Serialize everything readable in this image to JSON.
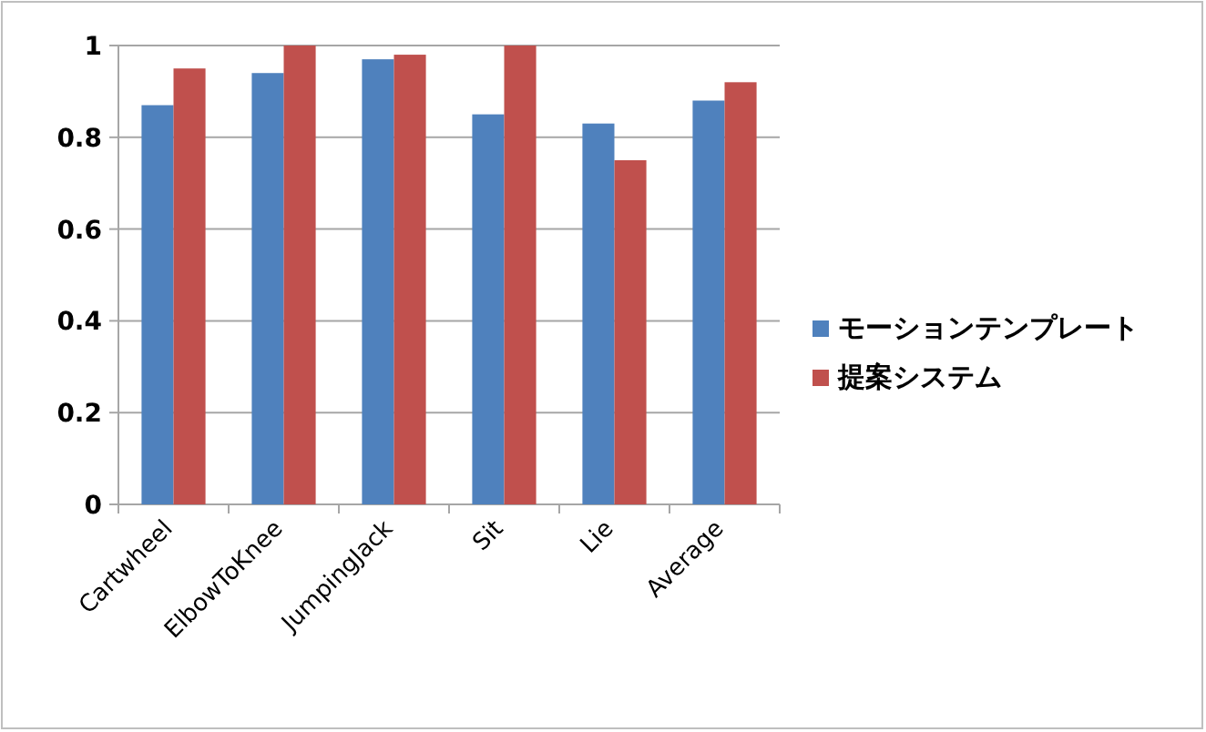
{
  "chart_data": {
    "type": "bar",
    "categories": [
      "Cartwheel",
      "ElbowToKnee",
      "JumpingJack",
      "Sit",
      "Lie",
      "Average"
    ],
    "series": [
      {
        "name": "モーションテンプレート",
        "color": "#4f81bd",
        "values": [
          0.87,
          0.94,
          0.97,
          0.85,
          0.83,
          0.88
        ]
      },
      {
        "name": "提案システム",
        "color": "#c0504d",
        "values": [
          0.95,
          1.0,
          0.98,
          1.0,
          0.75,
          0.92
        ]
      }
    ],
    "ylim": [
      0,
      1
    ],
    "yticks": [
      0,
      0.2,
      0.4,
      0.6,
      0.8,
      1
    ],
    "grid": "y",
    "legend": "right"
  }
}
